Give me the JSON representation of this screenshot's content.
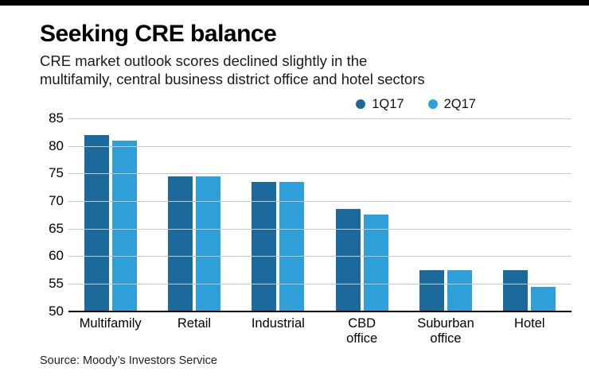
{
  "header": {
    "title": "Seeking CRE balance",
    "subtitle_lines": [
      "CRE market outlook scores declined slightly in the",
      "multifamily, central business district office and hotel sectors"
    ]
  },
  "legend": {
    "items": [
      {
        "label": "1Q17",
        "color": "#1b6a9b"
      },
      {
        "label": "2Q17",
        "color": "#2f9fda"
      }
    ]
  },
  "source": "Source: Moody’s Investors Service",
  "colors": {
    "series1": "#1b6a9b",
    "series2": "#2f9fda",
    "gridline": "#c7c7c7",
    "axis": "#000000",
    "topbar": "#000000"
  },
  "chart_data": {
    "type": "bar",
    "title": "Seeking CRE balance",
    "subtitle": "CRE market outlook scores declined slightly in the multifamily, central business district office and hotel sectors",
    "categories": [
      "Multifamily",
      "Retail",
      "Industrial",
      "CBD office",
      "Suburban office",
      "Hotel"
    ],
    "series": [
      {
        "name": "1Q17",
        "color": "#1b6a9b",
        "values": [
          82,
          74.5,
          73.5,
          68.5,
          57.5,
          57.5
        ]
      },
      {
        "name": "2Q17",
        "color": "#2f9fda",
        "values": [
          81,
          74.5,
          73.5,
          67.5,
          57.5,
          54.5
        ]
      }
    ],
    "xlabel": "",
    "ylabel": "",
    "ylim": [
      50,
      85
    ],
    "yticks": [
      50,
      55,
      60,
      65,
      70,
      75,
      80,
      85
    ],
    "grid": true,
    "legend_position": "top-right",
    "source": "Source: Moody’s Investors Service"
  }
}
